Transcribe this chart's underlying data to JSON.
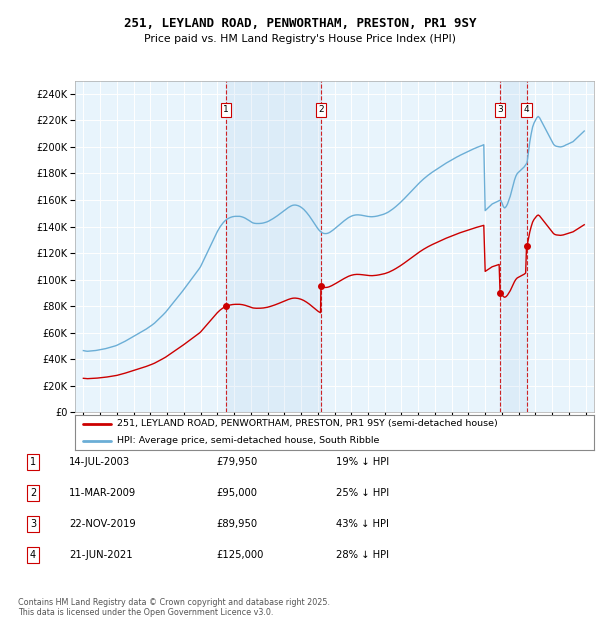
{
  "title_line1": "251, LEYLAND ROAD, PENWORTHAM, PRESTON, PR1 9SY",
  "title_line2": "Price paid vs. HM Land Registry's House Price Index (HPI)",
  "legend_line1": "251, LEYLAND ROAD, PENWORTHAM, PRESTON, PR1 9SY (semi-detached house)",
  "legend_line2": "HPI: Average price, semi-detached house, South Ribble",
  "footer_line1": "Contains HM Land Registry data © Crown copyright and database right 2025.",
  "footer_line2": "This data is licensed under the Open Government Licence v3.0.",
  "transactions": [
    {
      "num": 1,
      "date": "14-JUL-2003",
      "price": 79950,
      "pct": "19% ↓ HPI",
      "year": 2003.53
    },
    {
      "num": 2,
      "date": "11-MAR-2009",
      "price": 95000,
      "pct": "25% ↓ HPI",
      "year": 2009.19
    },
    {
      "num": 3,
      "date": "22-NOV-2019",
      "price": 89950,
      "pct": "43% ↓ HPI",
      "year": 2019.89
    },
    {
      "num": 4,
      "date": "21-JUN-2021",
      "price": 125000,
      "pct": "28% ↓ HPI",
      "year": 2021.47
    }
  ],
  "hpi_color": "#6baed6",
  "price_color": "#cc0000",
  "vline_color": "#cc0000",
  "fill_color": "#c6dcf0",
  "background_color": "#e8f4fc",
  "ylim": [
    0,
    250000
  ],
  "yticks": [
    0,
    20000,
    40000,
    60000,
    80000,
    100000,
    120000,
    140000,
    160000,
    180000,
    200000,
    220000,
    240000
  ],
  "xlim_start": 1994.5,
  "xlim_end": 2025.5,
  "hpi_monthly_years": [
    1995.0,
    1995.083,
    1995.167,
    1995.25,
    1995.333,
    1995.417,
    1995.5,
    1995.583,
    1995.667,
    1995.75,
    1995.833,
    1995.917,
    1996.0,
    1996.083,
    1996.167,
    1996.25,
    1996.333,
    1996.417,
    1996.5,
    1996.583,
    1996.667,
    1996.75,
    1996.833,
    1996.917,
    1997.0,
    1997.083,
    1997.167,
    1997.25,
    1997.333,
    1997.417,
    1997.5,
    1997.583,
    1997.667,
    1997.75,
    1997.833,
    1997.917,
    1998.0,
    1998.083,
    1998.167,
    1998.25,
    1998.333,
    1998.417,
    1998.5,
    1998.583,
    1998.667,
    1998.75,
    1998.833,
    1998.917,
    1999.0,
    1999.083,
    1999.167,
    1999.25,
    1999.333,
    1999.417,
    1999.5,
    1999.583,
    1999.667,
    1999.75,
    1999.833,
    1999.917,
    2000.0,
    2000.083,
    2000.167,
    2000.25,
    2000.333,
    2000.417,
    2000.5,
    2000.583,
    2000.667,
    2000.75,
    2000.833,
    2000.917,
    2001.0,
    2001.083,
    2001.167,
    2001.25,
    2001.333,
    2001.417,
    2001.5,
    2001.583,
    2001.667,
    2001.75,
    2001.833,
    2001.917,
    2002.0,
    2002.083,
    2002.167,
    2002.25,
    2002.333,
    2002.417,
    2002.5,
    2002.583,
    2002.667,
    2002.75,
    2002.833,
    2002.917,
    2003.0,
    2003.083,
    2003.167,
    2003.25,
    2003.333,
    2003.417,
    2003.5,
    2003.583,
    2003.667,
    2003.75,
    2003.833,
    2003.917,
    2004.0,
    2004.083,
    2004.167,
    2004.25,
    2004.333,
    2004.417,
    2004.5,
    2004.583,
    2004.667,
    2004.75,
    2004.833,
    2004.917,
    2005.0,
    2005.083,
    2005.167,
    2005.25,
    2005.333,
    2005.417,
    2005.5,
    2005.583,
    2005.667,
    2005.75,
    2005.833,
    2005.917,
    2006.0,
    2006.083,
    2006.167,
    2006.25,
    2006.333,
    2006.417,
    2006.5,
    2006.583,
    2006.667,
    2006.75,
    2006.833,
    2006.917,
    2007.0,
    2007.083,
    2007.167,
    2007.25,
    2007.333,
    2007.417,
    2007.5,
    2007.583,
    2007.667,
    2007.75,
    2007.833,
    2007.917,
    2008.0,
    2008.083,
    2008.167,
    2008.25,
    2008.333,
    2008.417,
    2008.5,
    2008.583,
    2008.667,
    2008.75,
    2008.833,
    2008.917,
    2009.0,
    2009.083,
    2009.167,
    2009.25,
    2009.333,
    2009.417,
    2009.5,
    2009.583,
    2009.667,
    2009.75,
    2009.833,
    2009.917,
    2010.0,
    2010.083,
    2010.167,
    2010.25,
    2010.333,
    2010.417,
    2010.5,
    2010.583,
    2010.667,
    2010.75,
    2010.833,
    2010.917,
    2011.0,
    2011.083,
    2011.167,
    2011.25,
    2011.333,
    2011.417,
    2011.5,
    2011.583,
    2011.667,
    2011.75,
    2011.833,
    2011.917,
    2012.0,
    2012.083,
    2012.167,
    2012.25,
    2012.333,
    2012.417,
    2012.5,
    2012.583,
    2012.667,
    2012.75,
    2012.833,
    2012.917,
    2013.0,
    2013.083,
    2013.167,
    2013.25,
    2013.333,
    2013.417,
    2013.5,
    2013.583,
    2013.667,
    2013.75,
    2013.833,
    2013.917,
    2014.0,
    2014.083,
    2014.167,
    2014.25,
    2014.333,
    2014.417,
    2014.5,
    2014.583,
    2014.667,
    2014.75,
    2014.833,
    2014.917,
    2015.0,
    2015.083,
    2015.167,
    2015.25,
    2015.333,
    2015.417,
    2015.5,
    2015.583,
    2015.667,
    2015.75,
    2015.833,
    2015.917,
    2016.0,
    2016.083,
    2016.167,
    2016.25,
    2016.333,
    2016.417,
    2016.5,
    2016.583,
    2016.667,
    2016.75,
    2016.833,
    2016.917,
    2017.0,
    2017.083,
    2017.167,
    2017.25,
    2017.333,
    2017.417,
    2017.5,
    2017.583,
    2017.667,
    2017.75,
    2017.833,
    2017.917,
    2018.0,
    2018.083,
    2018.167,
    2018.25,
    2018.333,
    2018.417,
    2018.5,
    2018.583,
    2018.667,
    2018.75,
    2018.833,
    2018.917,
    2019.0,
    2019.083,
    2019.167,
    2019.25,
    2019.333,
    2019.417,
    2019.5,
    2019.583,
    2019.667,
    2019.75,
    2019.833,
    2019.917,
    2020.0,
    2020.083,
    2020.167,
    2020.25,
    2020.333,
    2020.417,
    2020.5,
    2020.583,
    2020.667,
    2020.75,
    2020.833,
    2020.917,
    2021.0,
    2021.083,
    2021.167,
    2021.25,
    2021.333,
    2021.417,
    2021.5,
    2021.583,
    2021.667,
    2021.75,
    2021.833,
    2021.917,
    2022.0,
    2022.083,
    2022.167,
    2022.25,
    2022.333,
    2022.417,
    2022.5,
    2022.583,
    2022.667,
    2022.75,
    2022.833,
    2022.917,
    2023.0,
    2023.083,
    2023.167,
    2023.25,
    2023.333,
    2023.417,
    2023.5,
    2023.583,
    2023.667,
    2023.75,
    2023.833,
    2023.917,
    2024.0,
    2024.083,
    2024.167,
    2024.25,
    2024.333,
    2024.417,
    2024.5,
    2024.583,
    2024.667,
    2024.75,
    2024.833,
    2024.917
  ],
  "hpi_monthly_values": [
    46500,
    46300,
    46100,
    46000,
    46100,
    46200,
    46300,
    46400,
    46500,
    46600,
    46800,
    47000,
    47200,
    47400,
    47600,
    47800,
    48000,
    48300,
    48600,
    48900,
    49200,
    49500,
    49800,
    50100,
    50500,
    51000,
    51500,
    52000,
    52500,
    53000,
    53600,
    54200,
    54800,
    55400,
    56000,
    56600,
    57200,
    57800,
    58400,
    59000,
    59600,
    60200,
    60800,
    61400,
    62000,
    62700,
    63400,
    64100,
    64800,
    65600,
    66400,
    67200,
    68200,
    69200,
    70200,
    71200,
    72200,
    73300,
    74400,
    75500,
    76800,
    78100,
    79400,
    80700,
    82000,
    83300,
    84600,
    85900,
    87200,
    88500,
    89800,
    91200,
    92600,
    94000,
    95400,
    96800,
    98200,
    99600,
    101000,
    102400,
    103800,
    105200,
    106600,
    108200,
    109800,
    112000,
    114200,
    116400,
    118600,
    120800,
    123000,
    125200,
    127400,
    129600,
    131800,
    134000,
    136200,
    138000,
    139800,
    141200,
    142600,
    143800,
    144800,
    145600,
    146200,
    146700,
    147100,
    147400,
    147600,
    147700,
    147700,
    147700,
    147700,
    147500,
    147200,
    146800,
    146300,
    145700,
    145100,
    144400,
    143700,
    143000,
    142600,
    142400,
    142300,
    142300,
    142300,
    142400,
    142500,
    142700,
    143000,
    143300,
    143700,
    144200,
    144800,
    145400,
    146000,
    146700,
    147400,
    148100,
    148900,
    149700,
    150500,
    151300,
    152100,
    152900,
    153700,
    154400,
    155000,
    155600,
    156000,
    156200,
    156200,
    156000,
    155700,
    155200,
    154600,
    153800,
    152900,
    151800,
    150600,
    149300,
    147900,
    146400,
    144800,
    143200,
    141600,
    140000,
    138500,
    137200,
    136200,
    135400,
    134900,
    134700,
    134700,
    134900,
    135300,
    135900,
    136600,
    137400,
    138200,
    139100,
    140000,
    140900,
    141800,
    142700,
    143600,
    144400,
    145200,
    146000,
    146700,
    147300,
    147800,
    148200,
    148500,
    148700,
    148800,
    148800,
    148700,
    148600,
    148400,
    148200,
    148000,
    147800,
    147600,
    147500,
    147400,
    147400,
    147500,
    147600,
    147800,
    148000,
    148300,
    148600,
    148900,
    149200,
    149600,
    150100,
    150600,
    151200,
    151900,
    152600,
    153400,
    154200,
    155100,
    156000,
    156900,
    157900,
    158900,
    159900,
    161000,
    162100,
    163200,
    164300,
    165400,
    166600,
    167700,
    168800,
    169900,
    171000,
    172100,
    173100,
    174100,
    175100,
    176000,
    176900,
    177800,
    178600,
    179400,
    180200,
    180900,
    181600,
    182300,
    183000,
    183700,
    184400,
    185100,
    185800,
    186500,
    187100,
    187800,
    188400,
    189000,
    189600,
    190200,
    190800,
    191400,
    192000,
    192600,
    193100,
    193700,
    194200,
    194700,
    195200,
    195700,
    196200,
    196700,
    197200,
    197700,
    198200,
    198700,
    199100,
    199600,
    200000,
    200400,
    200800,
    201200,
    201700,
    152000,
    153000,
    154000,
    155000,
    156000,
    157000,
    157500,
    158000,
    158500,
    159000,
    159500,
    160000,
    158000,
    155000,
    154000,
    155000,
    157000,
    160000,
    163000,
    167000,
    171000,
    175000,
    178000,
    180000,
    181000,
    182000,
    183000,
    184000,
    185000,
    186500,
    188000,
    196000,
    204000,
    210000,
    215000,
    218000,
    220000,
    222000,
    223000,
    222000,
    220000,
    218000,
    216000,
    214000,
    212000,
    210000,
    208000,
    206000,
    204000,
    202000,
    201000,
    200500,
    200300,
    200100,
    200000,
    200200,
    200500,
    201000,
    201600,
    202000,
    202500,
    203000,
    203500,
    204000,
    205000,
    206000,
    207000,
    208000,
    209000,
    210000,
    211000,
    212000
  ]
}
